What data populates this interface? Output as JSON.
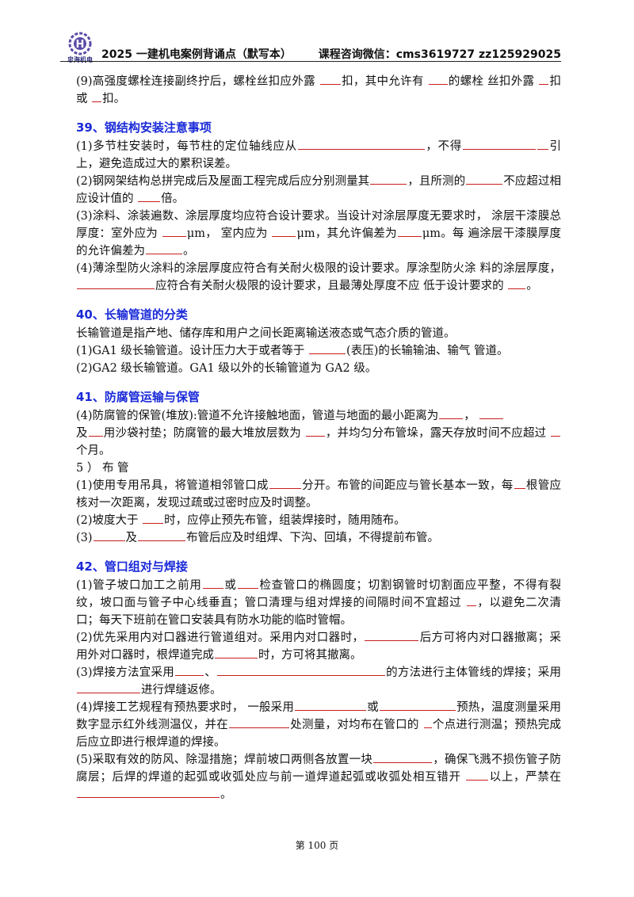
{
  "header": {
    "logo_text": "忠海机电",
    "title": "2025 一建机电案例背诵点（默写本）",
    "contact": "课程咨询微信：cms3619727   zz125929025"
  },
  "body": {
    "intro_9": [
      "(9)高强度螺栓连接副终拧后，螺栓丝扣应外露 ",
      "扣，其中允许有 ",
      "的螺栓 丝扣外露 ",
      "扣或 ",
      "扣。"
    ],
    "s39": {
      "title": "39、钢结构安装注意事项",
      "p1": [
        "(1)多节柱安装时，每节柱的定位轴线应从",
        "，不得",
        "引上，避免造成过大的累积误差。"
      ],
      "p2": [
        "(2)钢网架结构总拼完成后及屋面工程完成后应分别测量其",
        "，且所测的",
        "不应超过相应设计值的 ",
        "倍。"
      ],
      "p3": [
        "(3)涂料、涂装遍数、涂层厚度均应符合设计要求。当设计对涂层厚度无要求时， 涂层干漆膜总厚度：室外应为 ",
        "μm， 室内应为 ",
        "μm，其允许偏差为",
        "μm。每 遍涂层干漆膜厚度的允许偏差为",
        "。"
      ],
      "p4": [
        "(4)薄涂型防火涂料的涂层厚度应符合有关耐火极限的设计要求。厚涂型防火涂 料的涂层厚度，",
        "应符合有关耐火极限的设计要求，且最薄处厚度不应 低于设计要求的 ",
        "。"
      ]
    },
    "s40": {
      "title": "40、长输管道的分类",
      "p0": "长输管道是指产地、储存库和用户之间长距离输送液态或气态介质的管道。",
      "p1": [
        "(1)GA1 级长输管道。设计压力大于或者等于 ",
        "(表压)的长输输油、输气 管道。"
      ],
      "p2": "(2)GA2 级长输管道。GA1 级以外的长输管道为 GA2 级。"
    },
    "s41": {
      "title": "41、防腐管运输与保管",
      "p4": [
        "(4)防腐管的保管(堆放):管道不允许接触地面，管道与地面的最小距离为",
        "， ",
        "及",
        "用沙袋衬垫；防腐管的最大堆放层数为 ",
        "，并均匀分布管垛，露天存放时间不应超过 ",
        "个月。"
      ],
      "sub": "5 ） 布 管",
      "p1": [
        "(1)使用专用吊具，将管道相邻管口成",
        "分开。布管的间距应与管长基本一致，每",
        "根管应核对一次距离，发现过疏或过密时应及时调整。"
      ],
      "p2": [
        "(2)坡度大于 ",
        "时，应停止预先布管，组装焊接时，随用随布。"
      ],
      "p3": [
        "(3)",
        "及",
        "布管后应及时组焊、下沟、回填，不得提前布管。"
      ]
    },
    "s42": {
      "title": "42、管口组对与焊接",
      "p1": [
        "(1)管子坡口加工之前用",
        "或",
        "检查管口的椭圆度；切割钢管时切割面应平整，不得有裂纹，坡口面与管子中心线垂直；管口清理与组对焊接的间隔时间不宜超过 ",
        "，以避免二次清口；每天下班前在管口安装具有防水功能的临时管帽。"
      ],
      "p2": [
        "(2)优先采用内对口器进行管道组对。采用内对口器时，",
        "后方可将内对口器撤离；采用外对口器时，根焊道完成",
        "时，方可将其撤离。"
      ],
      "p3": [
        "(3)焊接方法宜采用",
        "、",
        "的方法进行主体管线的焊接；采用",
        "进行焊缝返修。"
      ],
      "p4": [
        "(4)焊接工艺规程有预热要求时， 一般采用",
        "或",
        "预热，温度测量采用数字显示红外线测温仪，并在",
        "处测量，对均布在管口的 ",
        "个点进行测温；预热完成后应立即进行根焊道的焊接。"
      ],
      "p5": [
        "(5)采取有效的防风、除湿措施；焊前坡口两侧各放置一块",
        "，确保飞溅不损伤管子防腐层；后焊的焊道的起弧或收弧处应与前一道焊道起弧或收弧处相互错开 ",
        "以上，严禁在",
        "。"
      ]
    }
  },
  "footer": {
    "page": "第 100 页"
  }
}
